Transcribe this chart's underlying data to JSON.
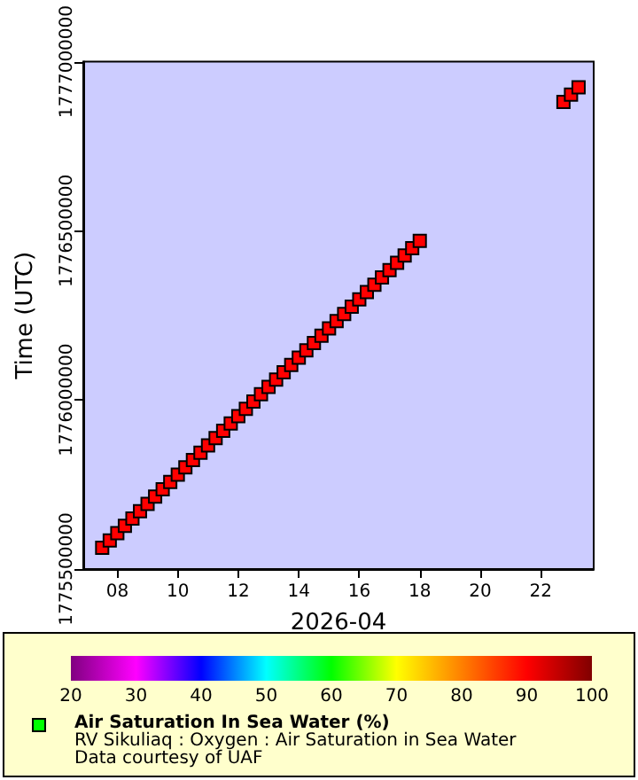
{
  "chart_data": {
    "type": "scatter",
    "xlabel": "2026-04",
    "ylabel": "Time (UTC)",
    "clabel": "Air Saturation In Sea Water (%)",
    "annotations": [
      "RV Sikuliaq : Oxygen : Air Saturation in Sea Water",
      "Data courtesy of UAF"
    ],
    "x": [
      "2026-04-07T12:00",
      "2026-04-07T18:00",
      "2026-04-08T00:00",
      "2026-04-08T06:00",
      "2026-04-08T12:00",
      "2026-04-08T18:00",
      "2026-04-09T00:00",
      "2026-04-09T06:00",
      "2026-04-09T12:00",
      "2026-04-09T18:00",
      "2026-04-10T00:00",
      "2026-04-10T06:00",
      "2026-04-10T12:00",
      "2026-04-10T18:00",
      "2026-04-11T00:00",
      "2026-04-11T06:00",
      "2026-04-11T12:00",
      "2026-04-11T18:00",
      "2026-04-12T00:00",
      "2026-04-12T06:00",
      "2026-04-12T12:00",
      "2026-04-12T18:00",
      "2026-04-13T00:00",
      "2026-04-13T06:00",
      "2026-04-13T12:00",
      "2026-04-13T18:00",
      "2026-04-14T00:00",
      "2026-04-14T06:00",
      "2026-04-14T12:00",
      "2026-04-14T18:00",
      "2026-04-15T00:00",
      "2026-04-15T06:00",
      "2026-04-15T12:00",
      "2026-04-15T18:00",
      "2026-04-16T00:00",
      "2026-04-16T06:00",
      "2026-04-16T12:00",
      "2026-04-16T18:00",
      "2026-04-17T00:00",
      "2026-04-17T06:00",
      "2026-04-17T12:00",
      "2026-04-17T18:00",
      "2026-04-18T00:00",
      "2026-04-22T18:00",
      "2026-04-23T00:00",
      "2026-04-23T06:00"
    ],
    "values": [
      1775563200,
      1775584800,
      1775606400,
      1775628000,
      1775649600,
      1775671200,
      1775692800,
      1775714400,
      1775736000,
      1775757600,
      1775779200,
      1775800800,
      1775822400,
      1775844000,
      1775865600,
      1775887200,
      1775908800,
      1775930400,
      1775952000,
      1775973600,
      1775995200,
      1776016800,
      1776038400,
      1776060000,
      1776081600,
      1776103200,
      1776124800,
      1776146400,
      1776168000,
      1776189600,
      1776211200,
      1776232800,
      1776254400,
      1776276000,
      1776297600,
      1776319200,
      1776340800,
      1776362400,
      1776384000,
      1776405600,
      1776427200,
      1776448800,
      1776470400,
      1776880800,
      1776902400,
      1776924000
    ],
    "cvalues": [
      90,
      90,
      90,
      90,
      90,
      90,
      90,
      90,
      90,
      90,
      90,
      90,
      90,
      90,
      90,
      90,
      90,
      90,
      90,
      90,
      90,
      90,
      90,
      90,
      90,
      90,
      90,
      90,
      90,
      90,
      90,
      90,
      90,
      90,
      90,
      90,
      90,
      90,
      90,
      90,
      90,
      90,
      90,
      90,
      90,
      90
    ],
    "clim": [
      20,
      100
    ],
    "cticks": [
      20,
      30,
      40,
      50,
      60,
      70,
      80,
      90,
      100
    ],
    "xlim": [
      "2026-04-06T21:00",
      "2026-04-23T18:00"
    ],
    "xticks": [
      {
        "value": "2026-04-08",
        "label": "08"
      },
      {
        "value": "2026-04-10",
        "label": "10"
      },
      {
        "value": "2026-04-12",
        "label": "12"
      },
      {
        "value": "2026-04-14",
        "label": "14"
      },
      {
        "value": "2026-04-16",
        "label": "16"
      },
      {
        "value": "2026-04-18",
        "label": "18"
      },
      {
        "value": "2026-04-20",
        "label": "20"
      },
      {
        "value": "2026-04-22",
        "label": "22"
      }
    ],
    "ylim": [
      1775500000,
      1777000000
    ],
    "yticks": [
      1775500000,
      1776000000,
      1776500000,
      1777000000
    ],
    "marker": "square",
    "grid": false
  }
}
